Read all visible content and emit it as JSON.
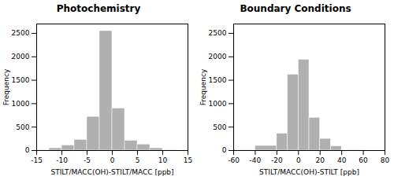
{
  "chart_data": [
    {
      "type": "histogram",
      "title": "Photochemistry",
      "xlabel": "STILT/MACC(OH)-STILT/MACC [ppb]",
      "ylabel": "Frequency",
      "bins": [
        -15,
        -12.5,
        -10,
        -7.5,
        -5,
        -2.5,
        0,
        2.5,
        5,
        7.5,
        10,
        12.5,
        15
      ],
      "values": [
        10,
        50,
        110,
        230,
        720,
        2550,
        900,
        210,
        130,
        50,
        10,
        5
      ],
      "color": "#b0b0b0",
      "xlim": [
        -15,
        15
      ],
      "xticks": [
        -15,
        -10,
        -5,
        0,
        5,
        10,
        15
      ],
      "ylim": [
        0,
        2700
      ],
      "yticks": [
        0,
        500,
        1000,
        1500,
        2000,
        2500
      ],
      "grid": false
    },
    {
      "type": "histogram",
      "title": "Boundary Conditions",
      "xlabel": "STILT/MACC(OH)-STILT [ppb]",
      "ylabel": "Frequency",
      "bins": [
        -60,
        -40,
        -20,
        -10,
        0,
        10,
        20,
        30,
        40,
        60,
        80
      ],
      "values": [
        10,
        100,
        360,
        1620,
        1940,
        700,
        250,
        90,
        10,
        5
      ],
      "color": "#b0b0b0",
      "xlim": [
        -60,
        80
      ],
      "xticks": [
        -60,
        -40,
        -20,
        0,
        20,
        40,
        60,
        80
      ],
      "ylim": [
        0,
        2700
      ],
      "yticks": [
        0,
        500,
        1000,
        1500,
        2000,
        2500
      ],
      "grid": false
    }
  ]
}
